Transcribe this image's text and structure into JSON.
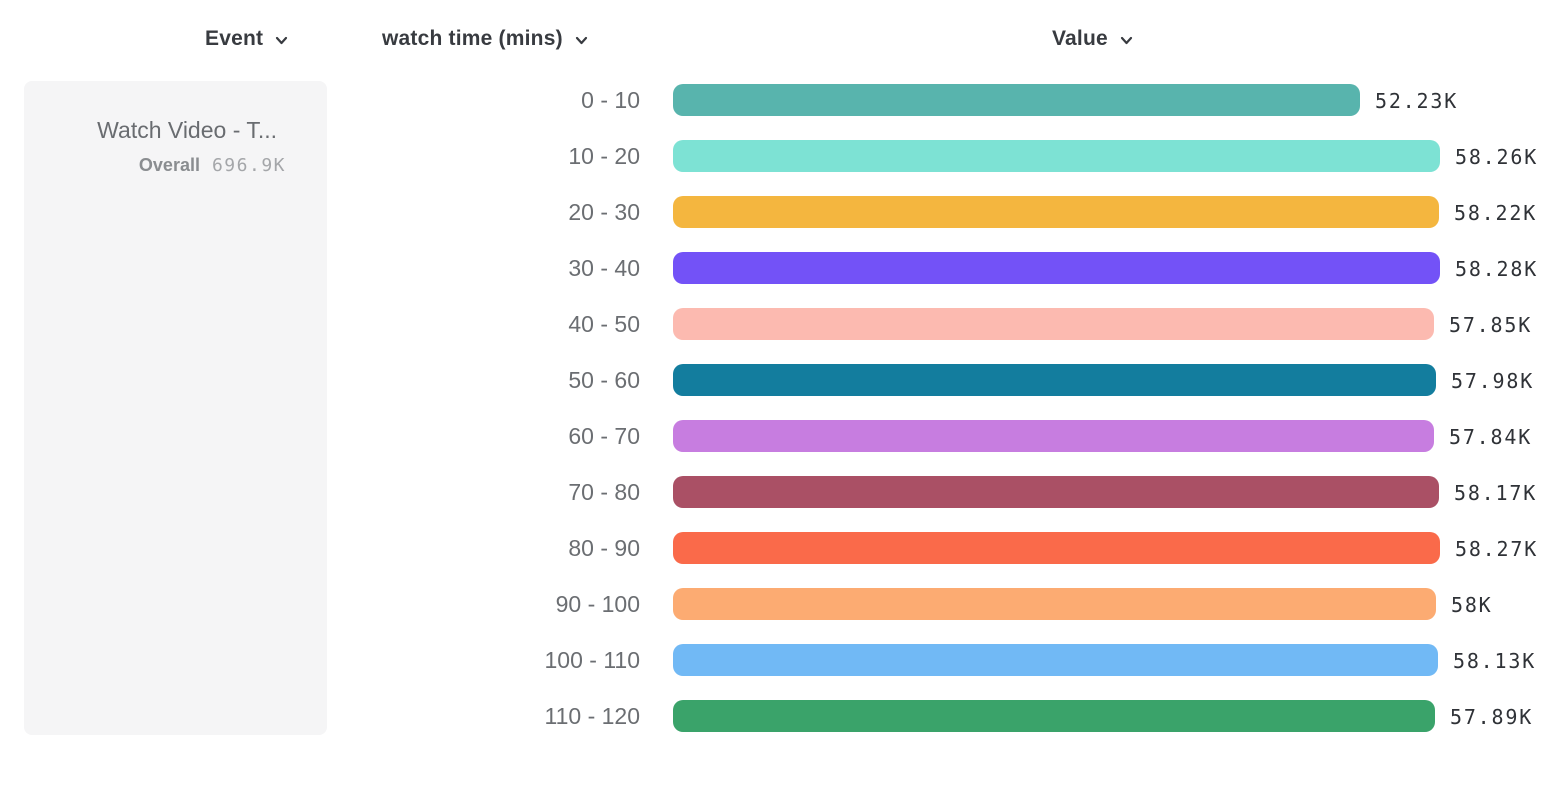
{
  "header": {
    "event_column": "Event",
    "breakdown_column": "watch time (mins)",
    "value_column": "Value"
  },
  "event_panel": {
    "title": "Watch Video - T...",
    "overall_label": "Overall",
    "overall_value": "696.9K"
  },
  "chart_data": {
    "type": "bar",
    "orientation": "horizontal",
    "title": "",
    "xlabel": "Value",
    "ylabel": "watch time (mins)",
    "categories": [
      "0 - 10",
      "10 - 20",
      "20 - 30",
      "30 - 40",
      "40 - 50",
      "50 - 60",
      "60 - 70",
      "70 - 80",
      "80 - 90",
      "90 - 100",
      "100 - 110",
      "110 - 120"
    ],
    "values": [
      52230,
      58260,
      58220,
      58280,
      57850,
      57980,
      57840,
      58170,
      58270,
      58000,
      58130,
      57890
    ],
    "value_labels": [
      "52.23K",
      "58.26K",
      "58.22K",
      "58.28K",
      "57.85K",
      "57.98K",
      "57.84K",
      "58.17K",
      "58.27K",
      "58K",
      "58.13K",
      "57.89K"
    ],
    "bar_colors": [
      "#58b4ad",
      "#7de2d4",
      "#f4b63f",
      "#7352f7",
      "#fcbab0",
      "#137d9e",
      "#c77de0",
      "#aa5065",
      "#fa6a4a",
      "#fcab72",
      "#71b9f5",
      "#3aa36a"
    ],
    "xlim": [
      0,
      58280
    ],
    "grid": false,
    "legend": false
  }
}
